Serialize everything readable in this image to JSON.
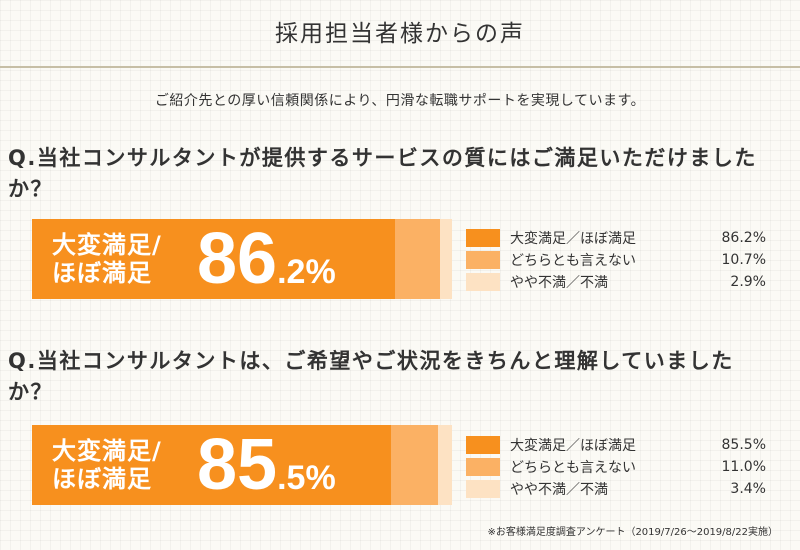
{
  "header": {
    "title": "採用担当者様からの声"
  },
  "intro": "ご紹介先との厚い信頼関係により、円滑な転職サポートを実現しています。",
  "questions": [
    {
      "question": "Q.当社コンサルタントが提供するサービスの質にはご満足いただけましたか？",
      "bar_label_line1": "大変満足/",
      "bar_label_line2": "ほぼ満足",
      "big_int": "86",
      "big_dec": ".2%"
    },
    {
      "question": "Q.当社コンサルタントは、ご希望やご状況をきちんと理解していましたか？",
      "bar_label_line1": "大変満足/",
      "bar_label_line2": "ほぼ満足",
      "big_int": "85",
      "big_dec": ".5%"
    }
  ],
  "chart_data": [
    {
      "type": "bar",
      "orientation": "horizontal-stacked",
      "categories": [
        "大変満足／ほぼ満足",
        "どちらとも言えない",
        "やや不満／不満"
      ],
      "values": [
        86.2,
        10.7,
        2.9
      ],
      "value_labels": [
        "86.2%",
        "10.7%",
        "2.9%"
      ],
      "colors": [
        "#f7901e",
        "#fbb164",
        "#fde2c3"
      ],
      "legend": "right"
    },
    {
      "type": "bar",
      "orientation": "horizontal-stacked",
      "categories": [
        "大変満足／ほぼ満足",
        "どちらとも言えない",
        "やや不満／不満"
      ],
      "values": [
        85.5,
        11.0,
        3.4
      ],
      "value_labels": [
        "85.5%",
        "11.0%",
        "3.4%"
      ],
      "colors": [
        "#f7901e",
        "#fbb164",
        "#fde2c3"
      ],
      "legend": "right"
    }
  ],
  "footnote": "※お客様満足度調査アンケート（2019/7/26〜2019/8/22実施）"
}
